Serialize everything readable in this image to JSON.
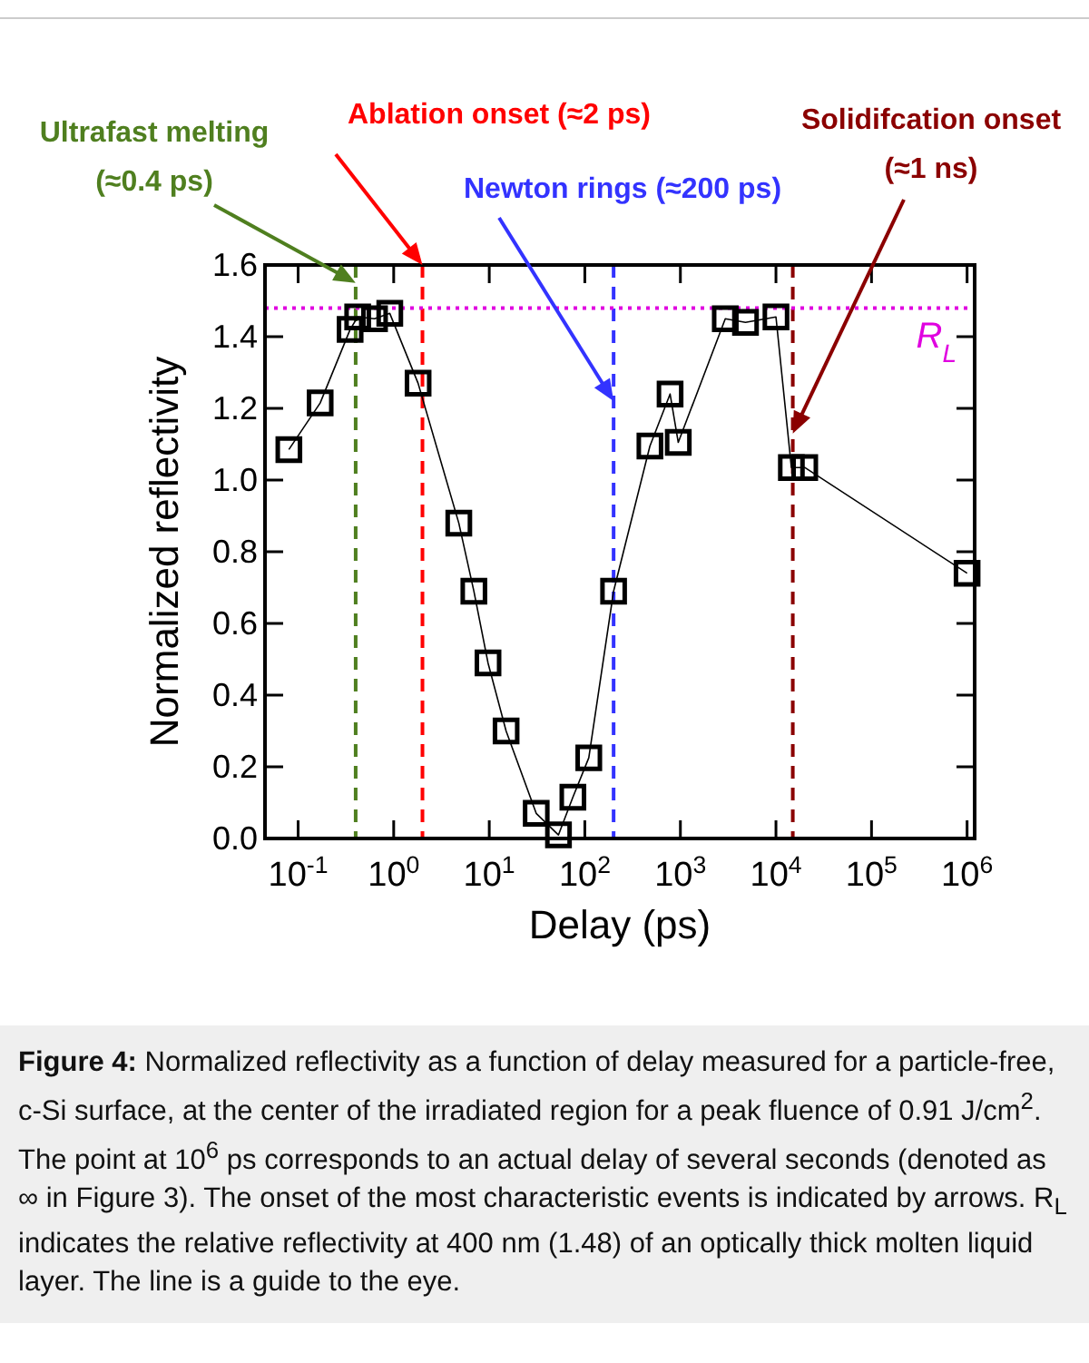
{
  "chart_data": {
    "type": "line",
    "xlabel": "Delay (ps)",
    "ylabel": "Normalized reflectivity",
    "log": "x",
    "xlim": [
      0.045,
      1200000
    ],
    "ylim": [
      0,
      1.6
    ],
    "xticks": [
      {
        "value": 0.1,
        "label": "10$^{-1}$"
      },
      {
        "value": 1,
        "label": "10$^{0}$"
      },
      {
        "value": 10,
        "label": "10$^{1}$"
      },
      {
        "value": 100,
        "label": "10$^{2}$"
      },
      {
        "value": 1000,
        "label": "10$^{3}$"
      },
      {
        "value": 10000,
        "label": "10$^{4}$"
      },
      {
        "value": 100000,
        "label": "10$^{5}$"
      },
      {
        "value": 1000000,
        "label": "10$^{6}$"
      }
    ],
    "yticks": [
      {
        "value": 0,
        "label": "0.0"
      },
      {
        "value": 0.2,
        "label": "0.2"
      },
      {
        "value": 0.4,
        "label": "0.4"
      },
      {
        "value": 0.6,
        "label": "0.6"
      },
      {
        "value": 0.8,
        "label": "0.8"
      },
      {
        "value": 1,
        "label": "1.0"
      },
      {
        "value": 1.2,
        "label": "1.2"
      },
      {
        "value": 1.4,
        "label": "1.4"
      },
      {
        "value": 1.6,
        "label": "1.6"
      }
    ],
    "marker": "square",
    "line_style": "solid",
    "grid": false,
    "series": [
      {
        "color": "#000000",
        "x": [
          0.08,
          0.17,
          0.35,
          0.42,
          0.63,
          0.91,
          1.8,
          4.8,
          6.9,
          9.7,
          15,
          31,
          53,
          75,
          110,
          200,
          480,
          780,
          950,
          2950,
          4800,
          10000,
          14500,
          20000,
          1000000
        ],
        "values": [
          1.085,
          1.215,
          1.42,
          1.455,
          1.45,
          1.465,
          1.27,
          0.88,
          0.69,
          0.49,
          0.3,
          0.07,
          0.01,
          0.115,
          0.225,
          0.69,
          1.095,
          1.24,
          1.105,
          1.45,
          1.44,
          1.455,
          1.035,
          1.035,
          0.74
        ]
      }
    ],
    "ref_lines": [
      {
        "axis": "x",
        "value": 0.4,
        "color": "#4f7f1f",
        "line_style": "dashed"
      },
      {
        "axis": "x",
        "value": 2,
        "color": "#ff0000",
        "line_style": "dashed"
      },
      {
        "axis": "x",
        "value": 200,
        "color": "#3333ff",
        "line_style": "dashed"
      },
      {
        "axis": "x",
        "value": 15000,
        "color": "#8b0000",
        "line_style": "dashed"
      },
      {
        "axis": "y",
        "value": 1.48,
        "color": "#e000e0",
        "line_style": "dotted",
        "label": "R$_{L}$"
      }
    ],
    "annotations": [
      {
        "text": "Ultrafast melting\n(≈0.4 ps)",
        "x": 0.4,
        "y": 1.55
      },
      {
        "text": "Ablation onset (≈2 ps)",
        "x": 2,
        "y": 1.6
      },
      {
        "text": "Newton rings (≈200 ps)",
        "x": 200,
        "y": 1.22
      },
      {
        "text": "Solidifcation onset\n(≈1 ns)",
        "x": 15000,
        "y": 1.13
      },
      "Figure 4: Normalized reflectivity as a function of delay measured for a particle-free, c-Si surface, at the center of the irradiated region for a peak fluence of 0.91 J/cm$^{2}$. The point at 10$^{6}$ ps corresponds to an actual delay of several seconds (denoted as ∞ in Figure 3). The onset of the most characteristic events is indicated by arrows. R$_{L}$ indicates the relative reflectivity at 400 nm (1.48) of an optically thick molten liquid layer. The line is a guide to the eye."
    ]
  }
}
